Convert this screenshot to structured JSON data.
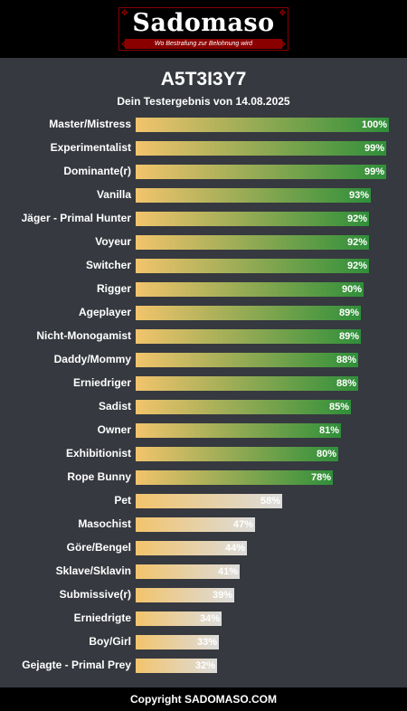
{
  "brand": {
    "name": "Sadomaso",
    "tagline": "Wo Bestrafung zur Belohnung wird"
  },
  "header": {
    "title": "A5T3I3Y7",
    "subtitle": "Dein Testergebnis von 14.08.2025"
  },
  "footer": {
    "text": "Copyright SADOMASO.COM"
  },
  "colors": {
    "bar_start": "#f2c46c",
    "bar_high_end": "#2f8f3a",
    "bar_low_end": "#dcdcdc",
    "background": "#36393f"
  },
  "chart_data": {
    "type": "bar",
    "orientation": "horizontal",
    "xlim": [
      0,
      100
    ],
    "unit": "%",
    "categories": [
      "Master/Mistress",
      "Experimentalist",
      "Dominante(r)",
      "Vanilla",
      "Jäger - Primal Hunter",
      "Voyeur",
      "Switcher",
      "Rigger",
      "Ageplayer",
      "Nicht-Monogamist",
      "Daddy/Mommy",
      "Erniedriger",
      "Sadist",
      "Owner",
      "Exhibitionist",
      "Rope Bunny",
      "Pet",
      "Masochist",
      "Göre/Bengel",
      "Sklave/Sklavin",
      "Submissive(r)",
      "Erniedrigte",
      "Boy/Girl",
      "Gejagte - Primal Prey"
    ],
    "values": [
      100,
      99,
      99,
      93,
      92,
      92,
      92,
      90,
      89,
      89,
      88,
      88,
      85,
      81,
      80,
      78,
      58,
      47,
      44,
      41,
      39,
      34,
      33,
      32
    ],
    "labels": [
      "100%",
      "99%",
      "99%",
      "93%",
      "92%",
      "92%",
      "92%",
      "90%",
      "89%",
      "89%",
      "88%",
      "88%",
      "85%",
      "81%",
      "80%",
      "78%",
      "58%",
      "47%",
      "44%",
      "41%",
      "39%",
      "34%",
      "33%",
      "32%"
    ]
  }
}
